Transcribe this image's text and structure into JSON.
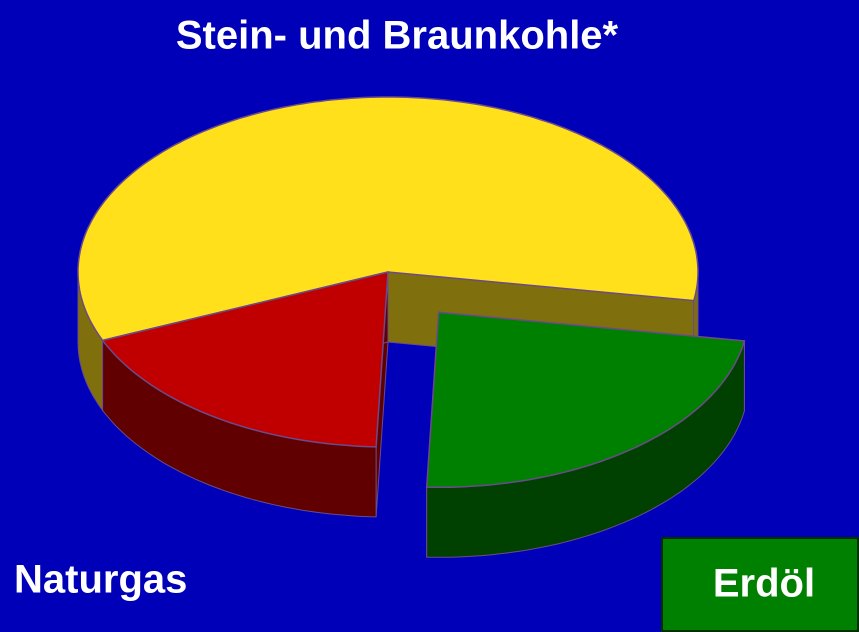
{
  "chart_data": {
    "type": "pie",
    "categories": [
      "Stein- und Braunkohle*",
      "Erdöl",
      "Naturgas"
    ],
    "values": [
      59,
      23,
      18
    ],
    "colors": [
      "#ffe01a",
      "#008000",
      "#c00000"
    ]
  }
}
